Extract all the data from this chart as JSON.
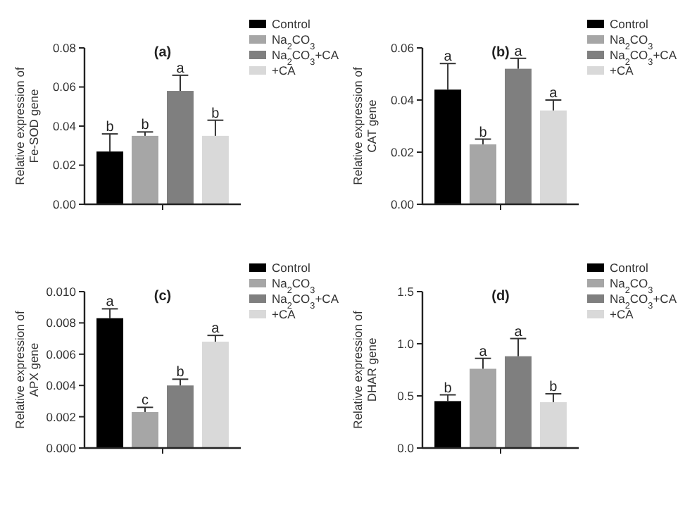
{
  "chart_data": [
    {
      "type": "bar",
      "title": "(a)",
      "ylabel": "Relative expression of Fe-SOD gene",
      "categories": [
        null
      ],
      "legend": "top right",
      "ylim": [
        0,
        0.08
      ],
      "yticks": [
        {
          "value": 0,
          "label": "0.00"
        },
        {
          "value": 0.02,
          "label": "0.02"
        },
        {
          "value": 0.04,
          "label": "0.04"
        },
        {
          "value": 0.06,
          "label": "0.06"
        },
        {
          "value": 0.08,
          "label": "0.08"
        }
      ],
      "series": [
        {
          "name": "Control",
          "color": "#000000",
          "values": [
            0.027
          ],
          "errors": [
            [
              0.027,
              0.036
            ]
          ],
          "value_labels": [
            "b"
          ]
        },
        {
          "name": "Na$_{2}$CO$_{3}$",
          "color": "#a6a6a6",
          "values": [
            0.035
          ],
          "errors": [
            [
              0.035,
              0.037
            ]
          ],
          "value_labels": [
            "b"
          ]
        },
        {
          "name": "Na$_{2}$CO$_{3}$+CA",
          "color": "#7f7f7f",
          "values": [
            0.058
          ],
          "errors": [
            [
              0.058,
              0.066
            ]
          ],
          "value_labels": [
            "a"
          ]
        },
        {
          "name": "+CA",
          "color": "#d9d9d9",
          "values": [
            0.035
          ],
          "errors": [
            [
              0.035,
              0.043
            ]
          ],
          "value_labels": [
            "b"
          ]
        }
      ]
    },
    {
      "type": "bar",
      "title": "(b)",
      "ylabel": "Relative expression of CAT gene",
      "categories": [
        null
      ],
      "legend": "top right",
      "ylim": [
        0,
        0.06
      ],
      "yticks": [
        {
          "value": 0,
          "label": "0.00"
        },
        {
          "value": 0.02,
          "label": "0.02"
        },
        {
          "value": 0.04,
          "label": "0.04"
        },
        {
          "value": 0.06,
          "label": "0.06"
        }
      ],
      "series": [
        {
          "name": "Control",
          "color": "#000000",
          "values": [
            0.044
          ],
          "errors": [
            [
              0.044,
              0.054
            ]
          ],
          "value_labels": [
            "a"
          ]
        },
        {
          "name": "Na$_{2}$CO$_{3}$",
          "color": "#a6a6a6",
          "values": [
            0.023
          ],
          "errors": [
            [
              0.023,
              0.025
            ]
          ],
          "value_labels": [
            "b"
          ]
        },
        {
          "name": "Na$_{2}$CO$_{3}$+CA",
          "color": "#7f7f7f",
          "values": [
            0.052
          ],
          "errors": [
            [
              0.052,
              0.056
            ]
          ],
          "value_labels": [
            "a"
          ]
        },
        {
          "name": "+CA",
          "color": "#d9d9d9",
          "values": [
            0.036
          ],
          "errors": [
            [
              0.036,
              0.04
            ]
          ],
          "value_labels": [
            "a"
          ]
        }
      ]
    },
    {
      "type": "bar",
      "title": "(c)",
      "ylabel": "Relative expression of APX gene",
      "categories": [
        null
      ],
      "legend": "top right",
      "ylim": [
        0,
        0.01
      ],
      "yticks": [
        {
          "value": 0,
          "label": "0.000"
        },
        {
          "value": 0.002,
          "label": "0.002"
        },
        {
          "value": 0.004,
          "label": "0.004"
        },
        {
          "value": 0.006,
          "label": "0.006"
        },
        {
          "value": 0.008,
          "label": "0.008"
        },
        {
          "value": 0.01,
          "label": "0.010"
        }
      ],
      "series": [
        {
          "name": "Control",
          "color": "#000000",
          "values": [
            0.0083
          ],
          "errors": [
            [
              0.0083,
              0.0089
            ]
          ],
          "value_labels": [
            "a"
          ]
        },
        {
          "name": "Na$_{2}$CO$_{3}$",
          "color": "#a6a6a6",
          "values": [
            0.0023
          ],
          "errors": [
            [
              0.0023,
              0.0026
            ]
          ],
          "value_labels": [
            "c"
          ]
        },
        {
          "name": "Na$_{2}$CO$_{3}$+CA",
          "color": "#7f7f7f",
          "values": [
            0.004
          ],
          "errors": [
            [
              0.004,
              0.0044
            ]
          ],
          "value_labels": [
            "b"
          ]
        },
        {
          "name": "+CA",
          "color": "#d9d9d9",
          "values": [
            0.0068
          ],
          "errors": [
            [
              0.0068,
              0.0072
            ]
          ],
          "value_labels": [
            "a"
          ]
        }
      ]
    },
    {
      "type": "bar",
      "title": "(d)",
      "ylabel": "Relative expression of DHAR gene",
      "categories": [
        null
      ],
      "legend": "top right",
      "ylim": [
        0,
        1.5
      ],
      "yticks": [
        {
          "value": 0,
          "label": "0.0"
        },
        {
          "value": 0.5,
          "label": "0.5"
        },
        {
          "value": 1,
          "label": "1.0"
        },
        {
          "value": 1.5,
          "label": "1.5"
        }
      ],
      "series": [
        {
          "name": "Control",
          "color": "#000000",
          "values": [
            0.45
          ],
          "errors": [
            [
              0.45,
              0.51
            ]
          ],
          "value_labels": [
            "b"
          ]
        },
        {
          "name": "Na$_{2}$CO$_{3}$",
          "color": "#a6a6a6",
          "values": [
            0.76
          ],
          "errors": [
            [
              0.76,
              0.86
            ]
          ],
          "value_labels": [
            "a"
          ]
        },
        {
          "name": "Na$_{2}$CO$_{3}$+CA",
          "color": "#7f7f7f",
          "values": [
            0.88
          ],
          "errors": [
            [
              0.88,
              1.05
            ]
          ],
          "value_labels": [
            "a"
          ]
        },
        {
          "name": "+CA",
          "color": "#d9d9d9",
          "values": [
            0.44
          ],
          "errors": [
            [
              0.44,
              0.52
            ]
          ],
          "value_labels": [
            "b"
          ]
        }
      ]
    }
  ]
}
